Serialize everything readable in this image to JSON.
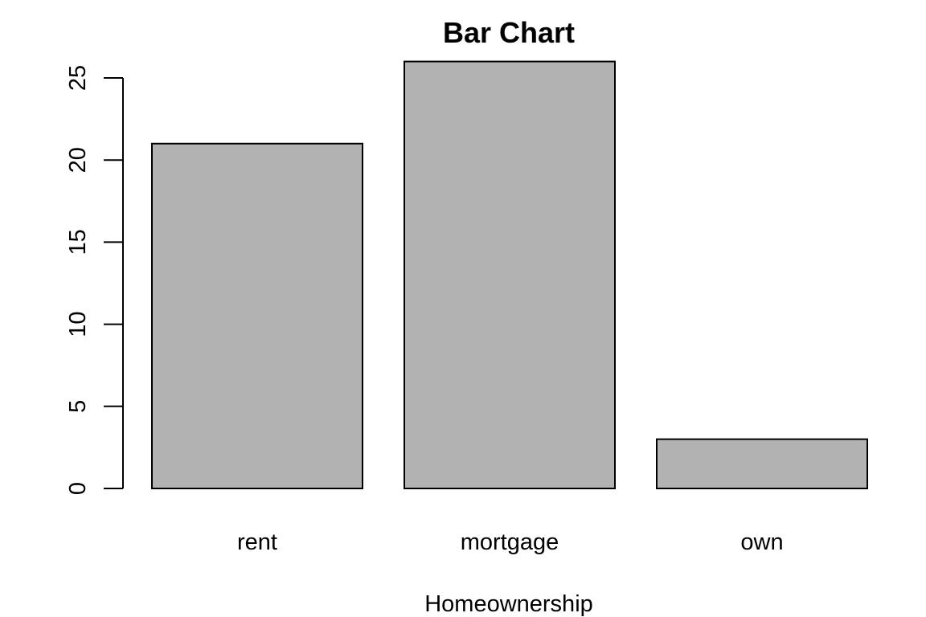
{
  "chart_data": {
    "type": "bar",
    "title": "Bar Chart",
    "xlabel": "Homeownership",
    "ylabel": "",
    "categories": [
      "rent",
      "mortgage",
      "own"
    ],
    "values": [
      21,
      26,
      3
    ],
    "ylim": [
      0,
      26
    ],
    "yticks": [
      0,
      5,
      10,
      15,
      20,
      25
    ],
    "grid": false,
    "legend": "none",
    "colors": {
      "bar_fill": "#b2b2b2",
      "bar_stroke": "#000000",
      "axis": "#000000",
      "text": "#000000",
      "background": "#ffffff"
    }
  }
}
